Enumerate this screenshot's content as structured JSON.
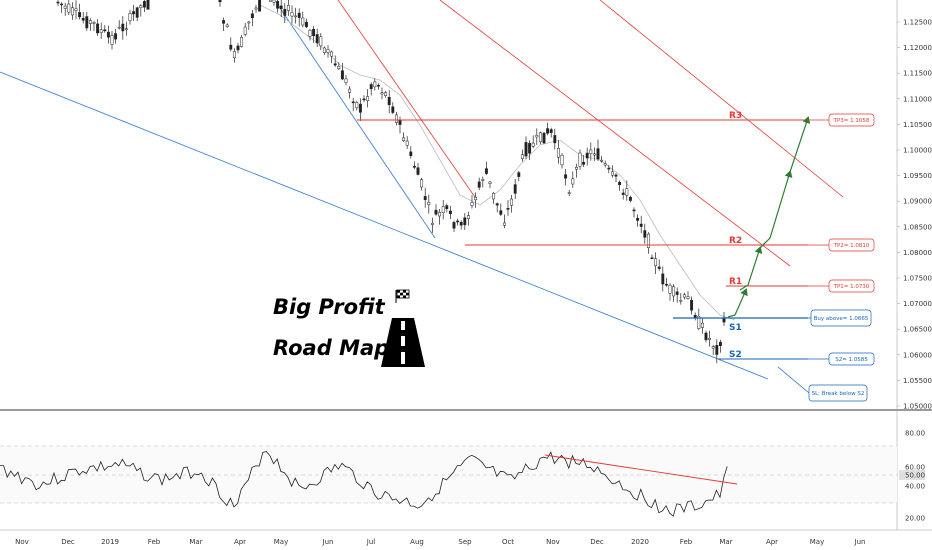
{
  "chart_data": {
    "type": "candlestick",
    "overlay_title": [
      "Big Profit",
      "Road Map"
    ],
    "x_tick_labels": [
      "Nov",
      "Dec",
      "2019",
      "Feb",
      "Mar",
      "Apr",
      "May",
      "Jun",
      "Jul",
      "Aug",
      "Sep",
      "Oct",
      "Nov",
      "Dec",
      "2020",
      "Feb",
      "Mar",
      "Apr",
      "May",
      "Jun"
    ],
    "price_axis_labels": [
      "1.12500",
      "1.12000",
      "1.11500",
      "1.11000",
      "1.10500",
      "1.10000",
      "1.09500",
      "1.09000",
      "1.08500",
      "1.08000",
      "1.07500",
      "1.07000",
      "1.06500",
      "1.06000",
      "1.05500",
      "1.05000"
    ],
    "rsi_axis_labels": [
      "80.00",
      "60.00",
      "50.00",
      "40.00",
      "20.00"
    ],
    "rsi_current": "50.00",
    "levels": [
      {
        "label": "R3",
        "value": 1.1058,
        "color": "#e53935"
      },
      {
        "label": "R2",
        "value": 1.081,
        "color": "#e53935"
      },
      {
        "label": "R1",
        "value": 1.073,
        "color": "#e53935"
      },
      {
        "label": "S1",
        "value": 1.0665,
        "color": "#1565c0"
      },
      {
        "label": "S2",
        "value": 1.0585,
        "color": "#1565c0"
      }
    ],
    "callouts": [
      {
        "text": "TP3= 1.1058",
        "color": "#e53935"
      },
      {
        "text": "TP2= 1.0810",
        "color": "#e53935"
      },
      {
        "text": "TP1= 1.0730",
        "color": "#e53935"
      },
      {
        "text": "Buy above= 1.0665",
        "color": "#1565c0"
      },
      {
        "text": "S2= 1.0585",
        "color": "#1565c0"
      },
      {
        "text": "SL: Break below S2",
        "color": "#1565c0"
      }
    ],
    "colors": {
      "resistance": "#e53935",
      "support": "#1565c0",
      "path_arrow": "#2e7d32",
      "candle": "#222222",
      "moving_average": "#bdbdbd",
      "rsi": "#222222"
    }
  }
}
